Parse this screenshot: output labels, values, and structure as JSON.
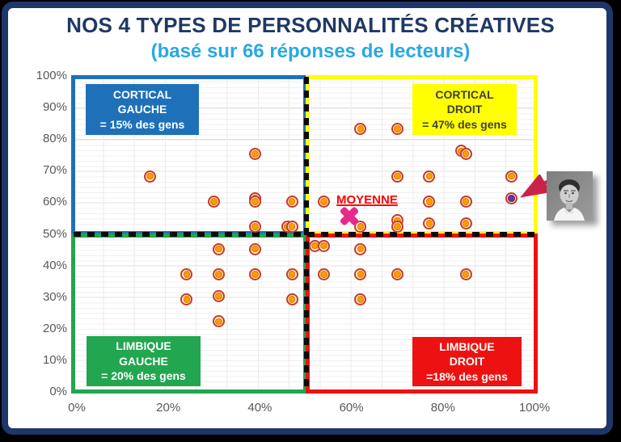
{
  "title": "NOS 4 TYPES DE PERSONNALITÉS CRÉATIVES",
  "subtitle": "(basé sur 66 réponses de lecteurs)",
  "colors": {
    "frame": "#1E3668",
    "title": "#1F3864",
    "subtitle": "#29A9E1",
    "axis_labels": "#595959",
    "marker_ring": "#C63A28",
    "marker_core": "#FF9C00",
    "author_marker_core": "#7030A0",
    "moyenne": "#E62A8D",
    "arrow": "#C9234A"
  },
  "chart_data": {
    "type": "scatter",
    "title": "NOS 4 TYPES DE PERSONNALITÉS CRÉATIVES",
    "subtitle": "(basé sur 66 réponses de lecteurs)",
    "xlabel": "",
    "ylabel": "",
    "xlim": [
      0,
      100
    ],
    "ylim": [
      0,
      100
    ],
    "grid": true,
    "x_axis": {
      "ticks": [
        "0%",
        "20%",
        "40%",
        "60%",
        "80%",
        "100%"
      ]
    },
    "y_axis": {
      "ticks": [
        "100%",
        "90%",
        "80%",
        "70%",
        "60%",
        "50%",
        "40%",
        "30%",
        "20%",
        "10%",
        "0%"
      ]
    },
    "quadrants": [
      {
        "id": "cortical-gauche",
        "lines": [
          "CORTICAL",
          "GAUCHE",
          "= 15% des gens"
        ],
        "color": "#1E71B8",
        "text_color": "#FFFFFF"
      },
      {
        "id": "cortical-droit",
        "lines": [
          "CORTICAL",
          "DROIT",
          "= 47% des gens"
        ],
        "color": "#FFFF00",
        "text_color": "#3F3F3F"
      },
      {
        "id": "limbique-gauche",
        "lines": [
          "LIMBIQUE",
          "GAUCHE",
          "= 20% des gens"
        ],
        "color": "#22A64F",
        "text_color": "#FFFFFF"
      },
      {
        "id": "limbique-droit",
        "lines": [
          "LIMBIQUE",
          "DROIT",
          "=18% des gens"
        ],
        "color": "#EE1111",
        "text_color": "#FFFFFF"
      }
    ],
    "series": [
      {
        "name": "reponses-lecteurs",
        "marker": "donut-orange",
        "points": [
          [
            16,
            68
          ],
          [
            30,
            60
          ],
          [
            39,
            75
          ],
          [
            39,
            61
          ],
          [
            39,
            60
          ],
          [
            47,
            60
          ],
          [
            39,
            52
          ],
          [
            46,
            52
          ],
          [
            47,
            52
          ],
          [
            54,
            60
          ],
          [
            62,
            83
          ],
          [
            70,
            83
          ],
          [
            84,
            76
          ],
          [
            85,
            75
          ],
          [
            70,
            68
          ],
          [
            77,
            68
          ],
          [
            95,
            68
          ],
          [
            77,
            60
          ],
          [
            85,
            60
          ],
          [
            62,
            52
          ],
          [
            70,
            54
          ],
          [
            70,
            52
          ],
          [
            77,
            53
          ],
          [
            85,
            53
          ],
          [
            31,
            45
          ],
          [
            39,
            45
          ],
          [
            24,
            37
          ],
          [
            31,
            37
          ],
          [
            39,
            37
          ],
          [
            47,
            37
          ],
          [
            24,
            29
          ],
          [
            31,
            30
          ],
          [
            47,
            29
          ],
          [
            31,
            22
          ],
          [
            52,
            46
          ],
          [
            54,
            46
          ],
          [
            62,
            45
          ],
          [
            54,
            37
          ],
          [
            62,
            37
          ],
          [
            70,
            37
          ],
          [
            85,
            37
          ],
          [
            62,
            29
          ]
        ]
      },
      {
        "name": "auteur",
        "marker": "donut-purple",
        "points": [
          [
            95,
            61
          ]
        ]
      },
      {
        "name": "moyenne",
        "marker": "x-magenta",
        "points": [
          [
            59.5,
            55.5
          ]
        ]
      }
    ],
    "annotations": [
      {
        "text": "MOYENNE",
        "color": "#FF0000"
      }
    ]
  },
  "photo": {
    "description": "portrait noir et blanc d'un homme en chemise blanche"
  }
}
